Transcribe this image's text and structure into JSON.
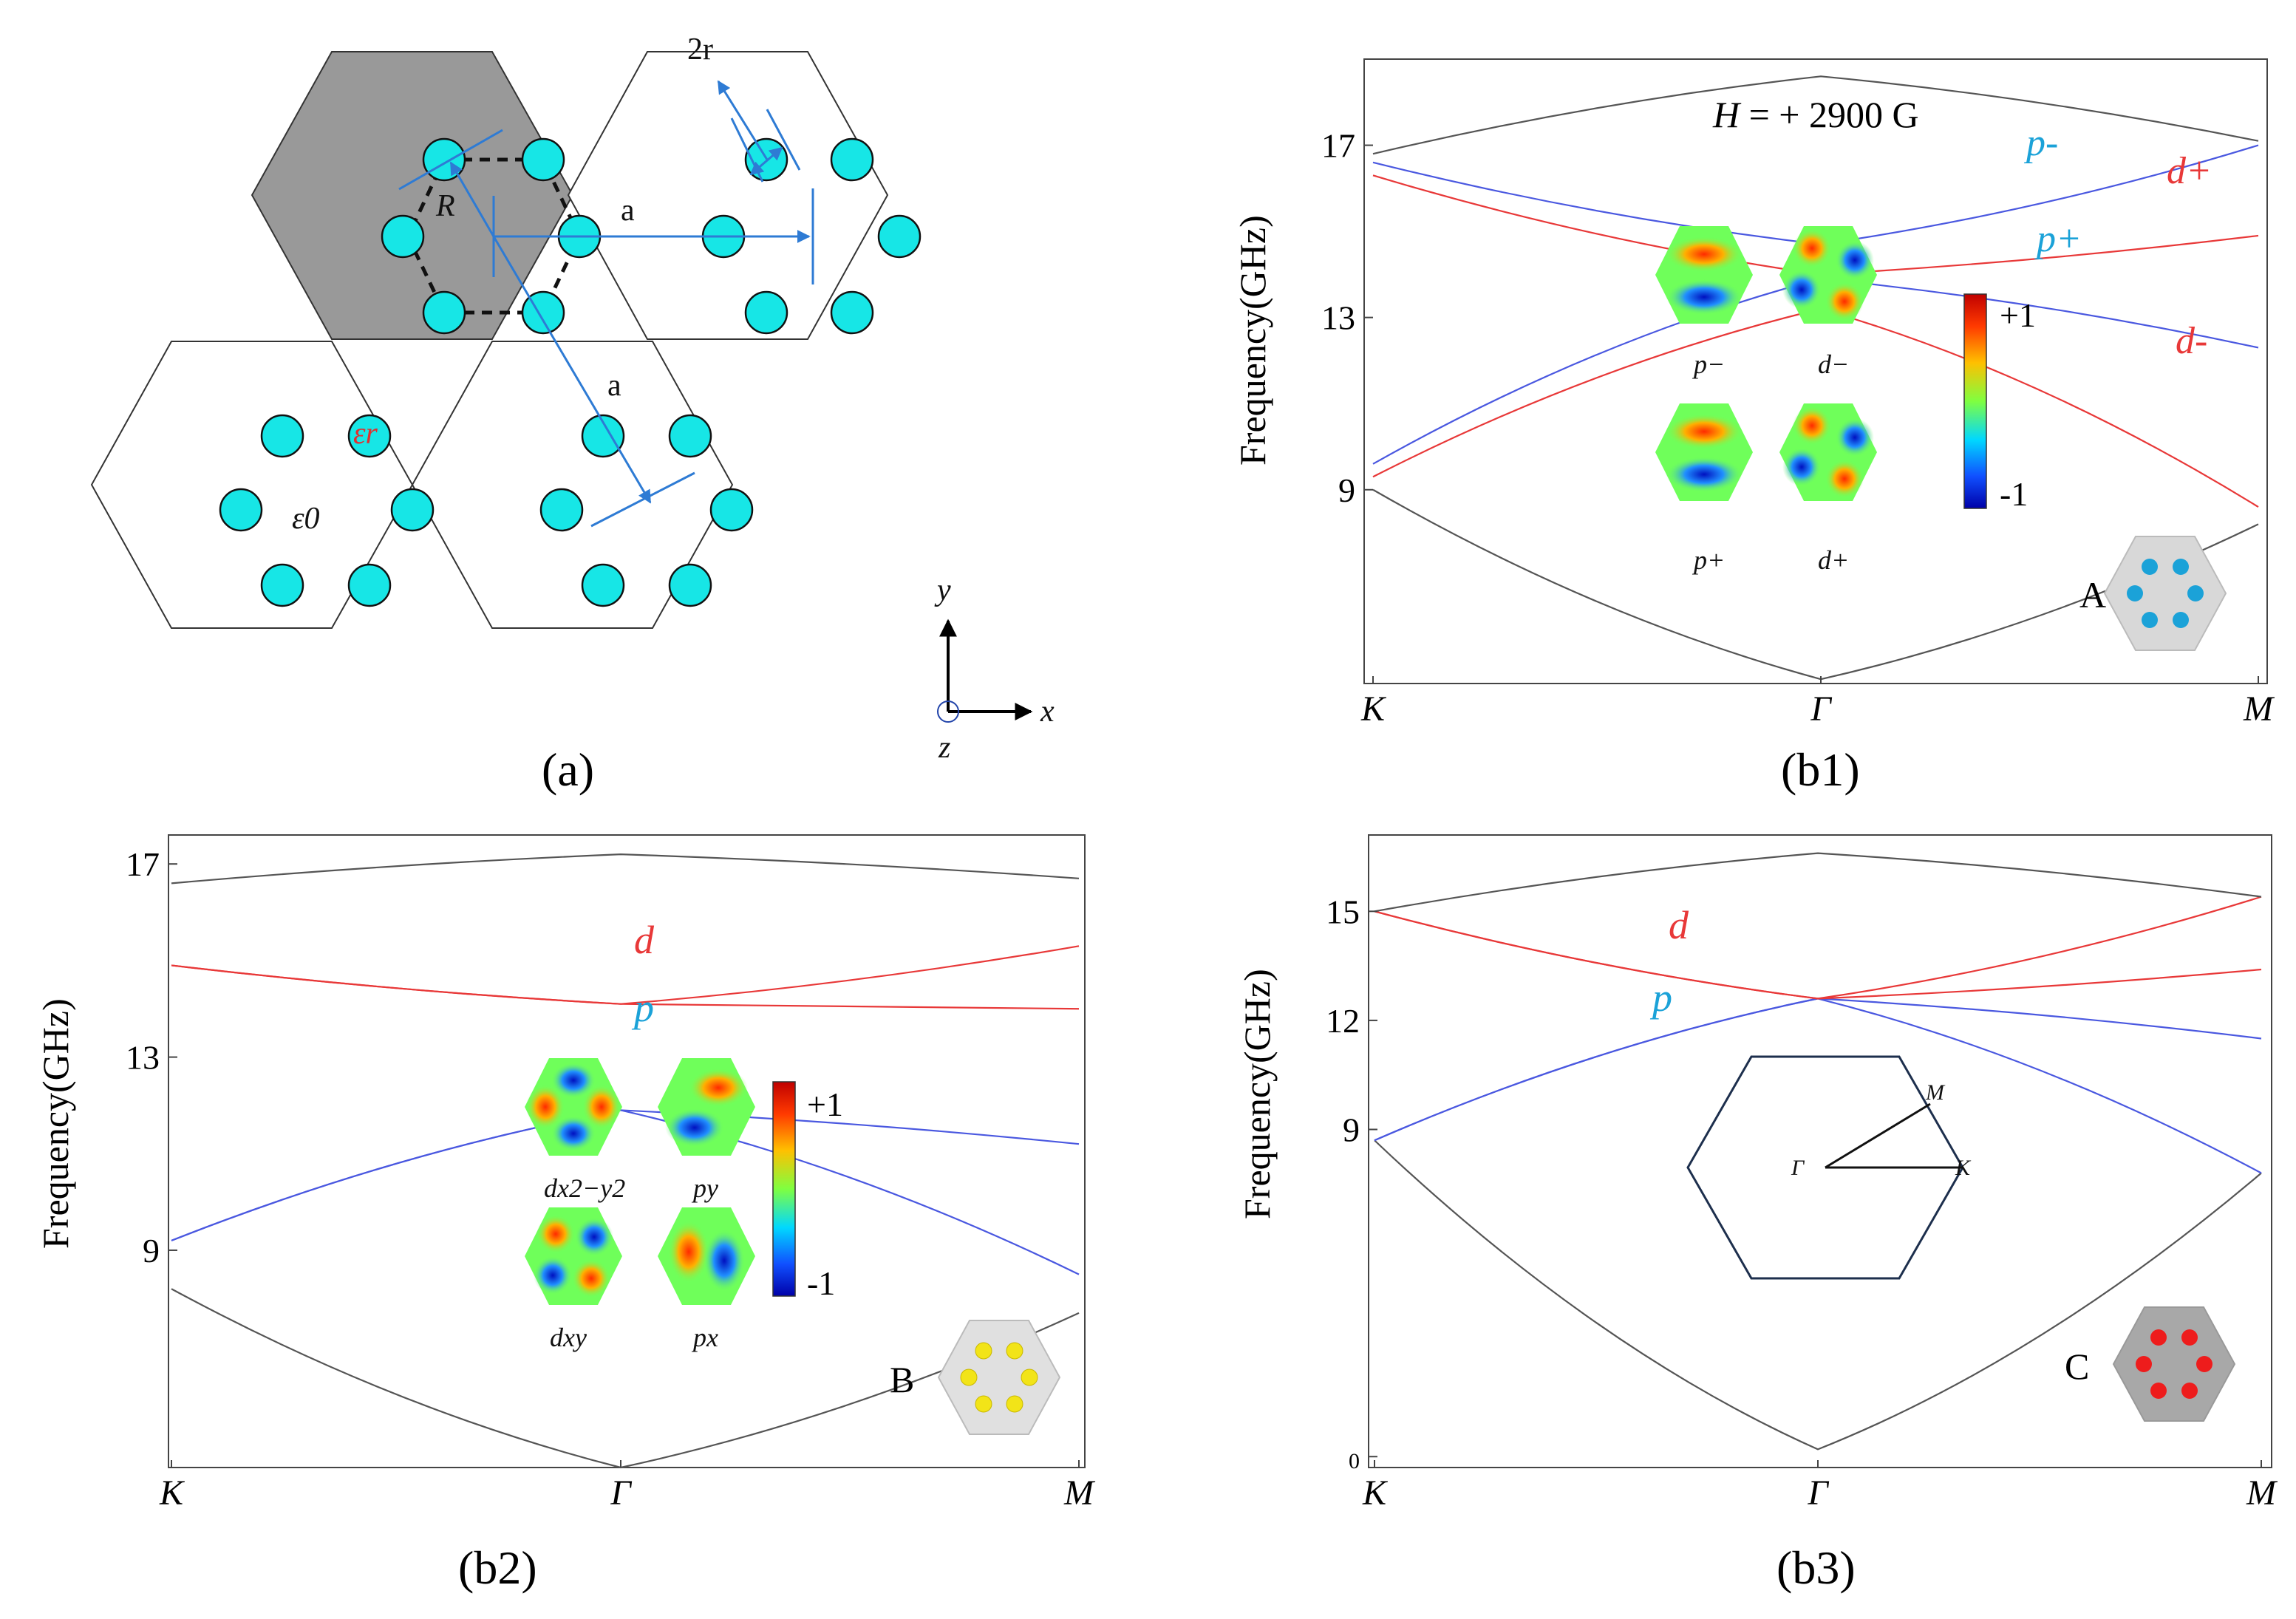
{
  "panels": {
    "a": {
      "caption": "(a)",
      "labels": {
        "two_r": "2r",
        "R": "R",
        "a1": "a",
        "a2": "a",
        "eps_r": "εr",
        "eps_0": "ε0",
        "ax_y": "y",
        "ax_x": "x",
        "ax_z": "z"
      }
    },
    "b1": {
      "caption": "(b1)",
      "field_label": "H = + 2900 G",
      "mode_labels": {
        "pm": "p-",
        "dp": "d+",
        "pp": "p+",
        "dm": "d-"
      },
      "inset_labels": [
        "p−",
        "d−",
        "p+",
        "d+"
      ],
      "colorbar": {
        "max": "+1",
        "min": "-1"
      },
      "struct_label": "A",
      "colors": {
        "p": "#4a58e0",
        "d": "#e83838",
        "outer": "#555555",
        "scatter": "#1ba2d8",
        "hex": "#d8d8d8"
      }
    },
    "b2": {
      "caption": "(b2)",
      "mode_labels": {
        "d": "d",
        "p": "p"
      },
      "inset_labels": [
        "dx2−y2",
        "py",
        "dxy",
        "px"
      ],
      "colorbar": {
        "max": "+1",
        "min": "-1"
      },
      "struct_label": "B",
      "colors": {
        "scatter": "#f2e418",
        "hex": "#e0e0e0"
      }
    },
    "b3": {
      "caption": "(b3)",
      "mode_labels": {
        "d": "d",
        "p": "p"
      },
      "bz_labels": {
        "M": "M",
        "G": "Γ",
        "K": "K"
      },
      "struct_label": "C",
      "colors": {
        "scatter": "#ee1c1c",
        "hex": "#a8a8a8"
      }
    }
  },
  "chart_data": [
    {
      "id": "b1",
      "type": "line",
      "title": "H = + 2900 G",
      "xlabel": "",
      "ylabel": "Frequency(GHz)",
      "categories": [
        "K",
        "Γ",
        "M"
      ],
      "yticks": [
        9,
        13,
        17
      ],
      "ylim": [
        4.5,
        19
      ],
      "series": [
        {
          "name": "band 1",
          "color": "#555555",
          "values": [
            9.0,
            4.6,
            8.2
          ]
        },
        {
          "name": "p+ (lower)",
          "color": "#4a58e0",
          "values": [
            9.6,
            13.9,
            12.3
          ]
        },
        {
          "name": "d- (lower)",
          "color": "#e83838",
          "values": [
            9.3,
            13.2,
            8.6
          ]
        },
        {
          "name": "d+",
          "color": "#e83838",
          "values": [
            16.3,
            14.0,
            14.9
          ]
        },
        {
          "name": "p-",
          "color": "#4a58e0",
          "values": [
            16.6,
            14.7,
            17.0
          ]
        },
        {
          "name": "top band",
          "color": "#555555",
          "values": [
            16.8,
            18.6,
            17.1
          ]
        }
      ]
    },
    {
      "id": "b2",
      "type": "line",
      "title": "",
      "xlabel": "",
      "ylabel": "Frequency(GHz)",
      "categories": [
        "K",
        "Γ",
        "M"
      ],
      "yticks": [
        9,
        13,
        17
      ],
      "ylim": [
        4.5,
        17.6
      ],
      "series": [
        {
          "name": "band 1",
          "color": "#555555",
          "values": [
            8.2,
            4.5,
            7.7
          ]
        },
        {
          "name": "p (1)",
          "color": "#4a58e0",
          "values": [
            9.2,
            11.9,
            8.5
          ]
        },
        {
          "name": "p (2)",
          "color": "#4a58e0",
          "values": [
            9.2,
            11.9,
            11.2
          ]
        },
        {
          "name": "d (1)",
          "color": "#e83838",
          "values": [
            14.9,
            14.1,
            14.0
          ]
        },
        {
          "name": "d (2)",
          "color": "#e83838",
          "values": [
            14.9,
            14.1,
            15.3
          ]
        },
        {
          "name": "top band",
          "color": "#555555",
          "values": [
            16.6,
            17.2,
            16.7
          ]
        }
      ]
    },
    {
      "id": "b3",
      "type": "line",
      "title": "",
      "xlabel": "",
      "ylabel": "Frequency(GHz)",
      "categories": [
        "K",
        "Γ",
        "M"
      ],
      "yticks": [
        0,
        9,
        12,
        15
      ],
      "ylim": [
        -0.3,
        17.1
      ],
      "series": [
        {
          "name": "band 1",
          "color": "#555555",
          "values": [
            8.7,
            0.2,
            7.8
          ]
        },
        {
          "name": "p (1)",
          "color": "#4a58e0",
          "values": [
            8.7,
            12.6,
            7.8
          ]
        },
        {
          "name": "p (2)",
          "color": "#4a58e0",
          "values": [
            8.7,
            12.6,
            11.5
          ]
        },
        {
          "name": "d (1)",
          "color": "#e83838",
          "values": [
            15.0,
            12.6,
            15.4
          ]
        },
        {
          "name": "d (2)",
          "color": "#e83838",
          "values": [
            15.0,
            12.6,
            13.4
          ]
        },
        {
          "name": "top band",
          "color": "#555555",
          "values": [
            15.0,
            16.6,
            15.4
          ]
        }
      ]
    }
  ]
}
